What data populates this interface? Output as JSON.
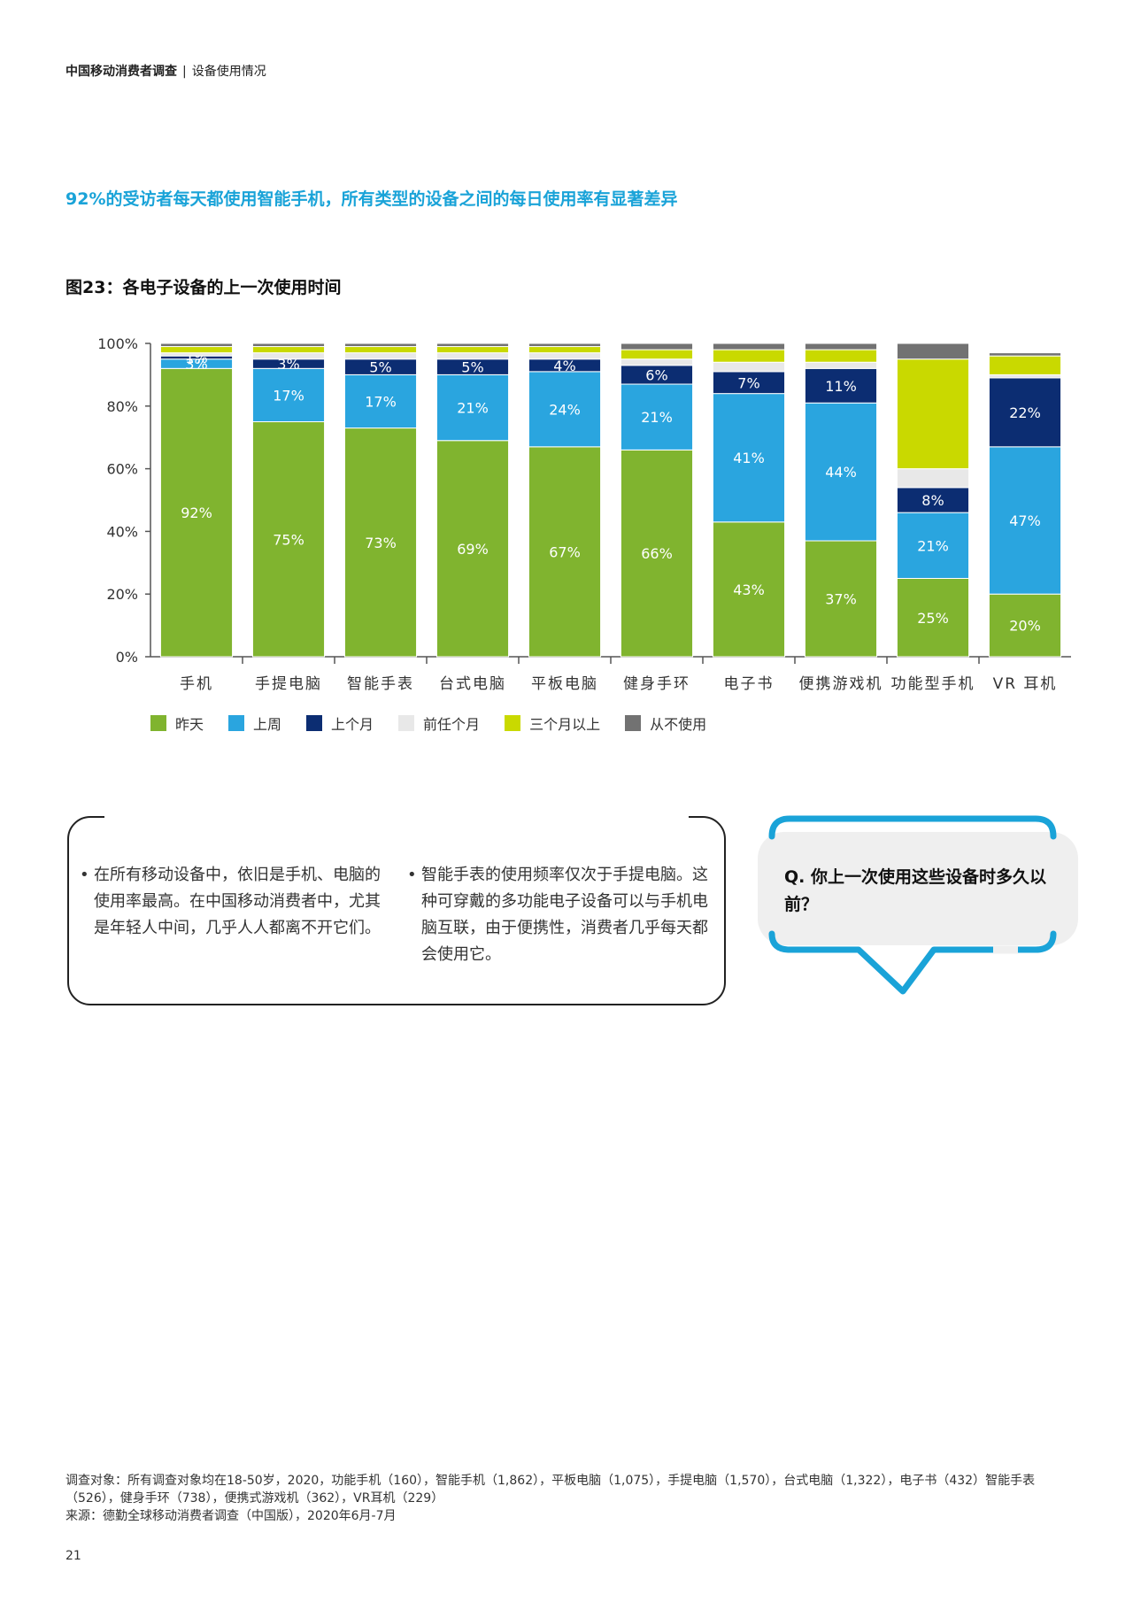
{
  "header": {
    "report": "中国移动消费者调查",
    "section": "设备使用情况"
  },
  "headline": "92%的受访者每天都使用智能手机，所有类型的设备之间的每日使用率有显著差异",
  "figure_title": "图23：各电子设备的上一次使用时间",
  "colors": {
    "yesterday": "#80b42f",
    "last_week": "#2aa5df",
    "last_month": "#0c2d72",
    "prior_months": "#e8e8e8",
    "over_three_months": "#c9d900",
    "never": "#727272",
    "accent": "#1aa3d8"
  },
  "chart_data": {
    "type": "bar",
    "stacked": true,
    "categories": [
      "手机",
      "手提电脑",
      "智能手表",
      "台式电脑",
      "平板电脑",
      "健身手环",
      "电子书",
      "便携游戏机",
      "功能型手机",
      "VR 耳机"
    ],
    "ylim": [
      0,
      100
    ],
    "yticks": [
      "0%",
      "20%",
      "40%",
      "60%",
      "80%",
      "100%"
    ],
    "series": [
      {
        "name": "昨天",
        "color": "#80b42f",
        "values": [
          92,
          75,
          73,
          69,
          67,
          66,
          43,
          37,
          25,
          20
        ]
      },
      {
        "name": "上周",
        "color": "#2aa5df",
        "values": [
          3,
          17,
          17,
          21,
          24,
          21,
          41,
          44,
          21,
          47
        ]
      },
      {
        "name": "上个月",
        "color": "#0c2d72",
        "values": [
          1,
          3,
          5,
          5,
          4,
          6,
          7,
          11,
          8,
          22
        ]
      },
      {
        "name": "前任个月",
        "color": "#e8e8e8",
        "values": [
          1,
          2,
          2,
          2,
          2,
          2,
          3,
          2,
          6,
          1
        ]
      },
      {
        "name": "三个月以上",
        "color": "#c9d900",
        "values": [
          2,
          2,
          2,
          2,
          2,
          3,
          4,
          4,
          35,
          6
        ]
      },
      {
        "name": "从不使用",
        "color": "#727272",
        "values": [
          1,
          1,
          1,
          1,
          1,
          2,
          2,
          2,
          5,
          1
        ]
      }
    ],
    "data_labels": [
      [
        "92%",
        "3%",
        "1%",
        null,
        null,
        null
      ],
      [
        "75%",
        "17%",
        "3%",
        null,
        null,
        null
      ],
      [
        "73%",
        "17%",
        "5%",
        null,
        null,
        null
      ],
      [
        "69%",
        "21%",
        "5%",
        null,
        null,
        null
      ],
      [
        "67%",
        "24%",
        "4%",
        null,
        null,
        null
      ],
      [
        "66%",
        "21%",
        "6%",
        null,
        null,
        null
      ],
      [
        "43%",
        "41%",
        "7%",
        null,
        null,
        null
      ],
      [
        "37%",
        "44%",
        "11%",
        null,
        null,
        null
      ],
      [
        "25%",
        "21%",
        "8%",
        null,
        null,
        null
      ],
      [
        "20%",
        "47%",
        "22%",
        null,
        null,
        null
      ]
    ],
    "legend_position": "bottom"
  },
  "notes": [
    "在所有移动设备中，依旧是手机、电脑的使用率最高。在中国移动消费者中，尤其是年轻人中间，几乎人人都离不开它们。",
    "智能手表的使用频率仅次于手提电脑。这种可穿戴的多功能电子设备可以与手机电脑互联，由于便携性，消费者几乎每天都会使用它。"
  ],
  "question": "Q. 你上一次使用这些设备时多久以前？",
  "footnote": {
    "respondents": "调查对象：所有调查对象均在18-50岁，2020，功能手机（160），智能手机（1,862），平板电脑（1,075），手提电脑（1,570），台式电脑（1,322），电子书（432）智能手表（526），健身手环（738），便携式游戏机（362），VR耳机（229）",
    "source": "来源：德勤全球移动消费者调查（中国版），2020年6月-7月"
  },
  "page_number": "21"
}
